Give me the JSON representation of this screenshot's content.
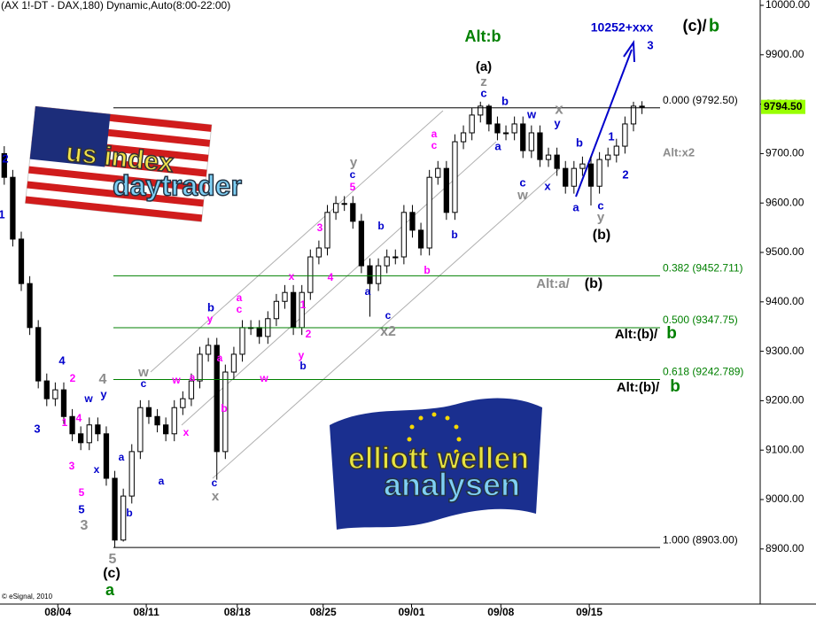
{
  "chart_data": {
    "type": "candlestick",
    "title": "(AX 1!-DT - DAX,180) Dynamic,Auto(8:00-22:00)",
    "credit": "© eSignal, 2010",
    "open": [
      9700,
      9652,
      9527,
      9437,
      9348,
      9240,
      9204,
      9222,
      9168,
      9133,
      9115,
      9151,
      9133,
      9043,
      8918,
      9007,
      9097,
      9186,
      9168,
      9151,
      9133,
      9186,
      9204,
      9240,
      9294,
      9312,
      9097,
      9258,
      9294,
      9348,
      9348,
      9330,
      9366,
      9401,
      9419,
      9348,
      9419,
      9491,
      9509,
      9581,
      9599,
      9599,
      9563,
      9473,
      9437,
      9473,
      9491,
      9491,
      9581,
      9545,
      9509,
      9652,
      9670,
      9581,
      9724,
      9742,
      9778,
      9796,
      9760,
      9742,
      9742,
      9760,
      9706,
      9742,
      9688,
      9697,
      9670,
      9634,
      9670,
      9679,
      9634,
      9688,
      9697,
      9715,
      9760,
      9796
    ],
    "high": [
      9715,
      9667,
      9542,
      9452,
      9363,
      9255,
      9237,
      9237,
      9183,
      9148,
      9166,
      9166,
      9148,
      9058,
      9022,
      9112,
      9201,
      9201,
      9183,
      9166,
      9201,
      9219,
      9255,
      9309,
      9327,
      9327,
      9273,
      9309,
      9363,
      9363,
      9363,
      9381,
      9416,
      9434,
      9434,
      9434,
      9506,
      9524,
      9596,
      9614,
      9614,
      9614,
      9578,
      9488,
      9488,
      9506,
      9506,
      9596,
      9596,
      9560,
      9667,
      9685,
      9685,
      9739,
      9757,
      9793,
      9805,
      9800,
      9775,
      9757,
      9775,
      9775,
      9757,
      9757,
      9712,
      9712,
      9685,
      9685,
      9694,
      9694,
      9703,
      9712,
      9730,
      9775,
      9805,
      9806
    ],
    "low": [
      9637,
      9512,
      9422,
      9333,
      9225,
      9189,
      9189,
      9153,
      9118,
      9100,
      9100,
      9118,
      9028,
      8903,
      8915,
      8992,
      9082,
      9153,
      9136,
      9118,
      9118,
      9171,
      9189,
      9225,
      9279,
      9040,
      9082,
      9243,
      9279,
      9333,
      9315,
      9315,
      9351,
      9386,
      9333,
      9333,
      9404,
      9476,
      9494,
      9566,
      9584,
      9548,
      9458,
      9370,
      9422,
      9458,
      9476,
      9476,
      9530,
      9494,
      9494,
      9637,
      9566,
      9566,
      9709,
      9727,
      9763,
      9745,
      9727,
      9727,
      9727,
      9691,
      9691,
      9673,
      9673,
      9655,
      9619,
      9619,
      9655,
      9595,
      9619,
      9673,
      9682,
      9700,
      9745,
      9780
    ],
    "close": [
      9652,
      9527,
      9437,
      9348,
      9240,
      9204,
      9222,
      9168,
      9133,
      9115,
      9151,
      9133,
      9043,
      8918,
      9007,
      9097,
      9186,
      9168,
      9151,
      9133,
      9186,
      9204,
      9240,
      9294,
      9312,
      9097,
      9258,
      9294,
      9348,
      9348,
      9330,
      9366,
      9401,
      9419,
      9348,
      9419,
      9491,
      9509,
      9581,
      9599,
      9599,
      9563,
      9473,
      9437,
      9473,
      9491,
      9491,
      9581,
      9545,
      9509,
      9652,
      9670,
      9581,
      9724,
      9742,
      9778,
      9796,
      9760,
      9742,
      9742,
      9760,
      9706,
      9742,
      9688,
      9697,
      9670,
      9634,
      9670,
      9679,
      9634,
      9688,
      9697,
      9715,
      9760,
      9796,
      9795
    ],
    "up_color": "#ffffff",
    "down_color": "#000000",
    "ylim": [
      8788.5,
      10010.8
    ],
    "yticks": [
      {
        "value": 8900,
        "label": "8900.00"
      },
      {
        "value": 9000,
        "label": "9000.00"
      },
      {
        "value": 9100,
        "label": "9100.00"
      },
      {
        "value": 9200,
        "label": "9200.00"
      },
      {
        "value": 9300,
        "label": "9300.00"
      },
      {
        "value": 9400,
        "label": "9400.00"
      },
      {
        "value": 9500,
        "label": "9500.00"
      },
      {
        "value": 9600,
        "label": "9600.00"
      },
      {
        "value": 9700,
        "label": "9700.00"
      },
      {
        "value": 9800,
        "label": "9800.00"
      },
      {
        "value": 9900,
        "label": "9900.00"
      },
      {
        "value": 10000,
        "label": "10000.00"
      }
    ],
    "xlim": [
      -0.5,
      88.9
    ],
    "xticks": [
      {
        "value": 6.3,
        "label": "08/04"
      },
      {
        "value": 16.7,
        "label": "08/11"
      },
      {
        "value": 27.4,
        "label": "08/18"
      },
      {
        "value": 37.5,
        "label": "08/25"
      },
      {
        "value": 47.9,
        "label": "09/01"
      },
      {
        "value": 58.4,
        "label": "09/08"
      },
      {
        "value": 68.8,
        "label": "09/15"
      }
    ],
    "grid": false,
    "fib_levels": [
      {
        "value": 9792.5,
        "label": "0.000 (9792.50)",
        "color": "#000000"
      },
      {
        "value": 9452.711,
        "label": "0.382 (9452.711)",
        "color": "#008000"
      },
      {
        "value": 9347.75,
        "label": "0.500 (9347.75)",
        "color": "#008000"
      },
      {
        "value": 9242.789,
        "label": "0.618 (9242.789)",
        "color": "#008000"
      },
      {
        "value": 8903,
        "label": "1.000 (8903.00)",
        "color": "#000000"
      }
    ],
    "last_price": {
      "value": 9794.5,
      "label": "9794.50",
      "color": "#99ff00"
    },
    "logos": [
      "us index",
      "daytrader",
      "elliott wellen",
      "analysen"
    ],
    "annotations": [
      {
        "text": "Alt:b",
        "color": "#008000"
      },
      {
        "text": "(a)",
        "color": "#000000"
      },
      {
        "text": "z",
        "color": "#8c8c8c"
      },
      {
        "text": "c",
        "color": "#0000cc"
      },
      {
        "text": "b",
        "color": "#0000cc"
      },
      {
        "text": "a",
        "color": "#0000cc"
      },
      {
        "text": "w",
        "color": "#0000cc"
      },
      {
        "text": "x",
        "color": "#8c8c8c"
      },
      {
        "text": "y",
        "color": "#0000cc"
      },
      {
        "text": "c",
        "color": "#0000cc"
      },
      {
        "text": "w",
        "color": "#8c8c8c"
      },
      {
        "text": "x",
        "color": "#0000cc"
      },
      {
        "text": "b",
        "color": "#0000cc"
      },
      {
        "text": "a",
        "color": "#0000cc"
      },
      {
        "text": "c",
        "color": "#0000cc"
      },
      {
        "text": "y",
        "color": "#8c8c8c"
      },
      {
        "text": "(b)",
        "color": "#000000"
      },
      {
        "text": "1",
        "color": "#0000cc"
      },
      {
        "text": "2",
        "color": "#0000cc"
      },
      {
        "text": "10252+xxx",
        "color": "#0000cc"
      },
      {
        "text": "3",
        "color": "#0000cc"
      },
      {
        "text": "(c)/",
        "color": "#000000"
      },
      {
        "text": "b",
        "color": "#008000"
      },
      {
        "text": "Alt:x2",
        "color": "#8c8c8c"
      },
      {
        "text": "Alt:a/",
        "color": "#8c8c8c"
      },
      {
        "text": "(b)",
        "color": "#000000"
      },
      {
        "text": "Alt:(b)/",
        "color": "#000000"
      },
      {
        "text": "b",
        "color": "#008000"
      },
      {
        "text": "Alt:(b)/",
        "color": "#000000"
      },
      {
        "text": "b",
        "color": "#008000"
      },
      {
        "text": "y",
        "color": "#8c8c8c"
      },
      {
        "text": "c",
        "color": "#0000cc"
      },
      {
        "text": "5",
        "color": "#ff00ff"
      },
      {
        "text": "3",
        "color": "#ff00ff"
      },
      {
        "text": "4",
        "color": "#ff00ff"
      },
      {
        "text": "a",
        "color": "#ff00ff"
      },
      {
        "text": "c",
        "color": "#ff00ff"
      },
      {
        "text": "b",
        "color": "#ff00ff"
      },
      {
        "text": "b",
        "color": "#0000cc"
      },
      {
        "text": "a",
        "color": "#0000cc"
      },
      {
        "text": "b",
        "color": "#0000cc"
      },
      {
        "text": "c",
        "color": "#0000cc"
      },
      {
        "text": "x2",
        "color": "#8c8c8c"
      },
      {
        "text": "x",
        "color": "#ff00ff"
      },
      {
        "text": "1",
        "color": "#ff00ff"
      },
      {
        "text": "2",
        "color": "#ff00ff"
      },
      {
        "text": "y",
        "color": "#ff00ff"
      },
      {
        "text": "b",
        "color": "#0000cc"
      },
      {
        "text": "b",
        "color": "#0000cc"
      },
      {
        "text": "y",
        "color": "#ff00ff"
      },
      {
        "text": "a",
        "color": "#ff00ff"
      },
      {
        "text": "c",
        "color": "#ff00ff"
      },
      {
        "text": "a",
        "color": "#ff00ff"
      },
      {
        "text": "b",
        "color": "#ff00ff"
      },
      {
        "text": "w",
        "color": "#ff00ff"
      },
      {
        "text": "c",
        "color": "#0000cc"
      },
      {
        "text": "x",
        "color": "#8c8c8c"
      },
      {
        "text": "w",
        "color": "#8c8c8c"
      },
      {
        "text": "c",
        "color": "#0000cc"
      },
      {
        "text": "w",
        "color": "#ff00ff"
      },
      {
        "text": "x",
        "color": "#ff00ff"
      },
      {
        "text": "a",
        "color": "#ff00ff"
      },
      {
        "text": "a",
        "color": "#0000cc"
      },
      {
        "text": "b",
        "color": "#0000cc"
      },
      {
        "text": "a",
        "color": "#0000cc"
      },
      {
        "text": "4",
        "color": "#0000cc"
      },
      {
        "text": "2",
        "color": "#ff00ff"
      },
      {
        "text": "w",
        "color": "#0000cc"
      },
      {
        "text": "4",
        "color": "#8c8c8c"
      },
      {
        "text": "y",
        "color": "#0000cc"
      },
      {
        "text": "4",
        "color": "#ff00ff"
      },
      {
        "text": "1",
        "color": "#ff00ff"
      },
      {
        "text": "3",
        "color": "#0000cc"
      },
      {
        "text": "x",
        "color": "#0000cc"
      },
      {
        "text": "3",
        "color": "#ff00ff"
      },
      {
        "text": "5",
        "color": "#ff00ff"
      },
      {
        "text": "5",
        "color": "#0000cc"
      },
      {
        "text": "3",
        "color": "#8c8c8c"
      },
      {
        "text": "5",
        "color": "#8c8c8c"
      },
      {
        "text": "(c)",
        "color": "#000000"
      },
      {
        "text": "a",
        "color": "#008000"
      },
      {
        "text": "2",
        "color": "#0000cc"
      },
      {
        "text": "1",
        "color": "#0000cc"
      }
    ]
  }
}
